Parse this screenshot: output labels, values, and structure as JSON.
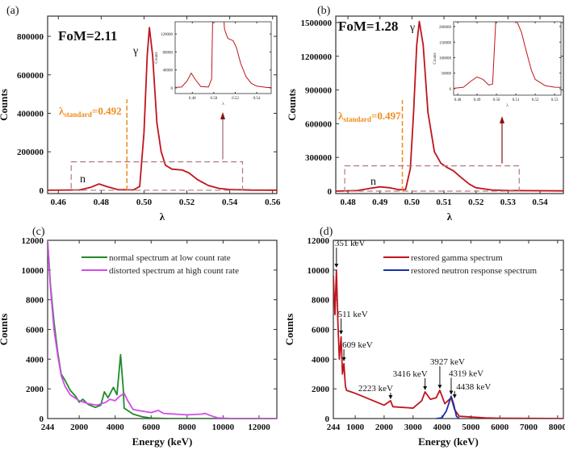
{
  "chart_data": [
    {
      "panel": "(a)",
      "type": "line",
      "xlabel": "λ",
      "ylabel": "Counts",
      "xlim": [
        0.455,
        0.562
      ],
      "ylim": [
        -17000,
        905000
      ],
      "x_ticks": [
        "0.46",
        "0.48",
        "0.50",
        "0.52",
        "0.54",
        "0.56"
      ],
      "y_ticks": [
        "0",
        "200000",
        "400000",
        "600000",
        "800000"
      ],
      "fom": "FoM=2.11",
      "gamma_label": "γ",
      "neutron_label": "n",
      "threshold": {
        "value": 0.492,
        "symbol": "λ",
        "sub": "standard",
        "text": "=0.492",
        "color": "#f08a1c"
      },
      "zoom_box": {
        "x": [
          0.466,
          0.546
        ],
        "y": [
          0,
          148000
        ]
      },
      "series": [
        {
          "color": "#c0141c",
          "x": [
            0.455,
            0.47,
            0.475,
            0.479,
            0.483,
            0.488,
            0.495,
            0.498,
            0.5,
            0.5015,
            0.5025,
            0.504,
            0.506,
            0.508,
            0.51,
            0.513,
            0.518,
            0.521,
            0.525,
            0.53,
            0.535,
            0.54,
            0.55,
            0.562
          ],
          "y": [
            0,
            2000,
            15000,
            33000,
            18000,
            3000,
            2000,
            20000,
            300000,
            700000,
            845000,
            700000,
            350000,
            200000,
            130000,
            110000,
            105000,
            90000,
            55000,
            25000,
            10000,
            4000,
            1000,
            500
          ]
        }
      ],
      "inset": {
        "xlabel": "λ",
        "ylabel": "Counts",
        "xlim": [
          0.464,
          0.5535
        ],
        "ylim": [
          -12500,
          147000
        ],
        "x_ticks": [
          "0.48",
          "0.50",
          "0.52",
          "0.54"
        ],
        "y_ticks": [
          "0",
          "40000",
          "80000",
          "120000"
        ]
      }
    },
    {
      "panel": "(b)",
      "type": "line",
      "xlabel": "λ",
      "ylabel": "Counts",
      "xlim": [
        0.4762,
        0.5473
      ],
      "ylim": [
        -21500,
        1557000
      ],
      "x_ticks": [
        "0.48",
        "0.49",
        "0.50",
        "0.51",
        "0.52",
        "0.53",
        "0.54"
      ],
      "y_ticks": [
        "0",
        "300000",
        "600000",
        "900000",
        "1200000",
        "1500000"
      ],
      "fom": "FoM=1.28",
      "gamma_label": "γ",
      "neutron_label": "n",
      "threshold": {
        "value": 0.497,
        "symbol": "λ",
        "sub": "standard",
        "text": "=0.497",
        "color": "#f08a1c"
      },
      "zoom_box": {
        "x": [
          0.479,
          0.5335
        ],
        "y": [
          0,
          225000
        ]
      },
      "series": [
        {
          "color": "#c0141c",
          "x": [
            0.4762,
            0.483,
            0.487,
            0.49,
            0.493,
            0.496,
            0.498,
            0.4995,
            0.5005,
            0.5015,
            0.5023,
            0.5035,
            0.505,
            0.507,
            0.509,
            0.511,
            0.513,
            0.515,
            0.518,
            0.52,
            0.525,
            0.53,
            0.5473
          ],
          "y": [
            0,
            5000,
            25000,
            38000,
            30000,
            12000,
            15000,
            200000,
            700000,
            1300000,
            1510000,
            1300000,
            700000,
            350000,
            250000,
            210000,
            180000,
            130000,
            60000,
            30000,
            10000,
            5000,
            2000
          ]
        }
      ],
      "inset": {
        "xlabel": "λ",
        "ylabel": "Counts",
        "xlim": [
          0.4779,
          0.5333
        ],
        "ylim": [
          -20800,
          215600
        ],
        "x_ticks": [
          "0.48",
          "0.49",
          "0.50",
          "0.51",
          "0.52",
          "0.53"
        ],
        "y_ticks": [
          "0",
          "50000",
          "100000",
          "150000",
          "200000"
        ]
      }
    },
    {
      "panel": "(c)",
      "type": "line",
      "xlabel": "Energy (keV)",
      "ylabel": "Counts",
      "xlim": [
        244,
        12990
      ],
      "ylim": [
        0,
        12000
      ],
      "x_ticks": [
        "244",
        "2000",
        "4000",
        "6000",
        "8000",
        "10000",
        "12000"
      ],
      "y_ticks": [
        "0",
        "2000",
        "4000",
        "6000",
        "8000",
        "10000",
        "12000"
      ],
      "legend_position": "top-right",
      "series": [
        {
          "name": "normal spectrum at low count rate",
          "color": "#1f8a2a",
          "x": [
            244,
            400,
            600,
            800,
            1000,
            1200,
            1500,
            1800,
            2000,
            2200,
            2500,
            2900,
            3200,
            3400,
            3600,
            3900,
            4100,
            4300,
            4450,
            4500,
            5000,
            5500,
            6000,
            7000,
            12990
          ],
          "y": [
            12000,
            9000,
            6500,
            4500,
            3000,
            2600,
            1900,
            1500,
            1100,
            1300,
            950,
            750,
            900,
            1800,
            1400,
            2100,
            1600,
            4300,
            2000,
            700,
            300,
            120,
            30,
            0,
            0
          ]
        },
        {
          "name": "distorted spectrum at high count  rate",
          "color": "#d24be8",
          "x": [
            244,
            400,
            600,
            800,
            1000,
            1200,
            1500,
            2000,
            2500,
            3000,
            3500,
            3700,
            4000,
            4200,
            4500,
            4700,
            5000,
            5500,
            6000,
            6400,
            6700,
            8000,
            8800,
            9000,
            9300,
            9700,
            10500,
            12990
          ],
          "y": [
            12000,
            8800,
            6000,
            4300,
            2900,
            2200,
            1600,
            1200,
            1000,
            900,
            1100,
            1300,
            1200,
            1450,
            1700,
            1200,
            600,
            500,
            400,
            550,
            350,
            250,
            300,
            350,
            200,
            50,
            0,
            0
          ]
        }
      ]
    },
    {
      "panel": "(d)",
      "type": "line",
      "xlabel": "Energy (keV)",
      "ylabel": "Counts",
      "xlim": [
        244,
        8200
      ],
      "ylim": [
        0,
        12000
      ],
      "x_ticks": [
        "244",
        "1000",
        "2000",
        "3000",
        "4000",
        "5000",
        "6000",
        "7000",
        "8000"
      ],
      "y_ticks": [
        "0",
        "2000",
        "4000",
        "6000",
        "8000",
        "10000",
        "12000"
      ],
      "legend_position": "top-right",
      "series": [
        {
          "name": "restored gamma spectrum",
          "color": "#c0141c",
          "x": [
            244,
            300,
            351,
            400,
            450,
            511,
            560,
            609,
            660,
            700,
            1000,
            1500,
            2000,
            2223,
            2300,
            3000,
            3300,
            3416,
            3600,
            3800,
            3927,
            4100,
            4319,
            4438,
            4600,
            5500,
            6000,
            8200
          ],
          "y": [
            9600,
            7000,
            10000,
            6500,
            4000,
            5500,
            3000,
            3700,
            2200,
            1900,
            1700,
            1300,
            900,
            1200,
            800,
            700,
            1200,
            1800,
            1300,
            1400,
            1900,
            1000,
            1400,
            600,
            150,
            50,
            20,
            0
          ]
        },
        {
          "name": "restored neutron response spectrum",
          "color": "#1a2fa8",
          "x": [
            3800,
            4000,
            4150,
            4319,
            4400,
            4500,
            4600
          ],
          "y": [
            0,
            50,
            500,
            1500,
            1000,
            150,
            0
          ]
        }
      ],
      "annotations": [
        {
          "text": "351 keV",
          "energy": 351,
          "counts": 10100
        },
        {
          "text": "511 keV",
          "energy": 511,
          "counts": 5600
        },
        {
          "text": "609 keV",
          "energy": 609,
          "counts": 3800
        },
        {
          "text": "2223 keV",
          "energy": 2223,
          "counts": 1250
        },
        {
          "text": "3416 keV",
          "energy": 3416,
          "counts": 1850
        },
        {
          "text": "3927 keV",
          "energy": 3927,
          "counts": 1950
        },
        {
          "text": "4319 keV",
          "energy": 4319,
          "counts": 1550
        },
        {
          "text": "4438 keV",
          "energy": 4438,
          "counts": 1300
        }
      ]
    }
  ]
}
